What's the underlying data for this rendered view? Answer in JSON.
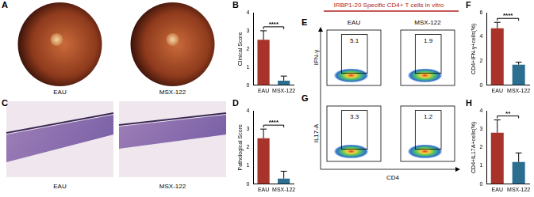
{
  "chart_data": [
    {
      "panel": "B",
      "type": "bar",
      "ylabel": "Clinical Score",
      "categories": [
        "EAU",
        "MSX-122"
      ],
      "values": [
        2.5,
        0.25
      ],
      "errors": [
        0.5,
        0.25
      ],
      "colors": [
        "#a8332b",
        "#2c6e8f"
      ],
      "ylim": [
        0,
        4
      ],
      "yticks": [
        0,
        1,
        2,
        3,
        4
      ],
      "grid": false,
      "annotation": "****"
    },
    {
      "panel": "D",
      "type": "bar",
      "ylabel": "Pathological Score",
      "categories": [
        "EAU",
        "MSX-122"
      ],
      "values": [
        2.5,
        0.3
      ],
      "errors": [
        0.5,
        0.4
      ],
      "colors": [
        "#a8332b",
        "#2c6e8f"
      ],
      "ylim": [
        0,
        4
      ],
      "yticks": [
        0,
        1,
        2,
        3,
        4
      ],
      "grid": false,
      "annotation": "****"
    },
    {
      "panel": "F",
      "type": "bar",
      "ylabel": "CD4+IFN-γ+cells(%)",
      "categories": [
        "EAU",
        "MSX-122"
      ],
      "values": [
        4.7,
        1.7
      ],
      "errors": [
        0.5,
        0.2
      ],
      "colors": [
        "#a8332b",
        "#2c6e8f"
      ],
      "ylim": [
        0,
        6
      ],
      "yticks": [
        0,
        2,
        4,
        6
      ],
      "grid": false,
      "annotation": "****"
    },
    {
      "panel": "H",
      "type": "bar",
      "ylabel": "CD4+IL17A+cells(%)",
      "categories": [
        "EAU",
        "MSX-122"
      ],
      "values": [
        2.8,
        1.2
      ],
      "errors": [
        0.7,
        0.5
      ],
      "colors": [
        "#a8332b",
        "#2c6e8f"
      ],
      "ylim": [
        0,
        4
      ],
      "yticks": [
        0,
        1,
        2,
        3,
        4
      ],
      "grid": false,
      "annotation": "**"
    }
  ],
  "images": [
    {
      "panel": "A",
      "labels": [
        "EAU",
        "MSX-122"
      ]
    },
    {
      "panel": "C",
      "labels": [
        "EAU",
        "MSX-122"
      ]
    }
  ],
  "flow": {
    "title": "IRBP1-20 Specific CD4+ T cells in vitro",
    "columns": [
      "EAU",
      "MSX-122"
    ],
    "xlabel": "CD4",
    "rows": [
      {
        "panel": "E",
        "ylabel": "IFN-γ",
        "gates": [
          5.1,
          1.9
        ]
      },
      {
        "panel": "G",
        "ylabel": "IL17-A",
        "gates": [
          3.3,
          1.2
        ]
      }
    ]
  }
}
